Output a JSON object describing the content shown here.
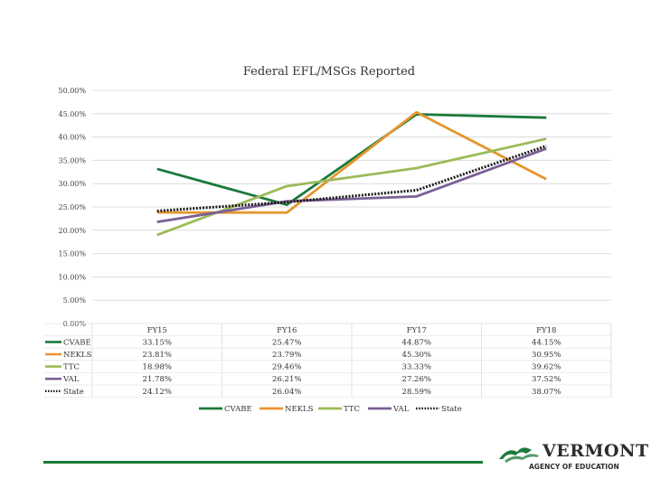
{
  "chart_data": {
    "type": "line",
    "title": "Federal EFL/MSGs Reported",
    "categories": [
      "FY15",
      "FY16",
      "FY17",
      "FY18"
    ],
    "ylim": [
      0,
      50
    ],
    "yticks": [
      "0.00%",
      "5.00%",
      "10.00%",
      "15.00%",
      "20.00%",
      "25.00%",
      "30.00%",
      "35.00%",
      "40.00%",
      "45.00%",
      "50.00%"
    ],
    "grid": true,
    "legend_position": "bottom",
    "data_table": true,
    "series": [
      {
        "name": "CVABE",
        "color": "#1b7a3a",
        "style": "solid",
        "values": [
          33.15,
          25.47,
          44.87,
          44.15
        ],
        "labels": [
          "33.15%",
          "25.47%",
          "44.87%",
          "44.15%"
        ]
      },
      {
        "name": "NEKLS",
        "color": "#e5962f",
        "style": "solid",
        "values": [
          23.81,
          23.79,
          45.3,
          30.95
        ],
        "labels": [
          "23.81%",
          "23.79%",
          "45.30%",
          "30.95%"
        ]
      },
      {
        "name": "TTC",
        "color": "#9bbb59",
        "style": "solid",
        "values": [
          18.98,
          29.46,
          33.33,
          39.62
        ],
        "labels": [
          "18.98%",
          "29.46%",
          "33.33%",
          "39.62%"
        ]
      },
      {
        "name": "VAL",
        "color": "#7a5f96",
        "style": "solid",
        "values": [
          21.78,
          26.21,
          27.26,
          37.52
        ],
        "labels": [
          "21.78%",
          "26.21%",
          "27.26%",
          "37.52%"
        ]
      },
      {
        "name": "State",
        "color": "#1a1a1a",
        "style": "dotted",
        "values": [
          24.12,
          26.04,
          28.59,
          38.07
        ],
        "labels": [
          "24.12%",
          "26.04%",
          "28.59%",
          "38.07%"
        ]
      }
    ]
  },
  "logo": {
    "word": "VERMONT",
    "sub": "AGENCY OF EDUCATION",
    "mark": "vermont-mountain-logo-icon"
  }
}
